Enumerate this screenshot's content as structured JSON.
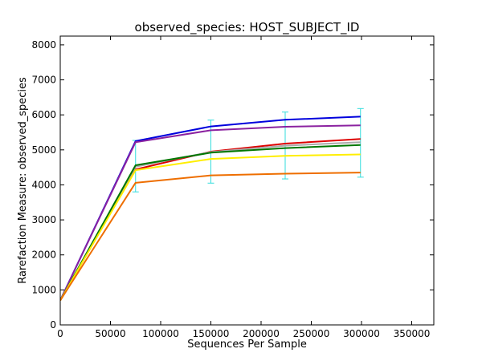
{
  "chart_data": {
    "type": "line",
    "title": "observed_species: HOST_SUBJECT_ID",
    "xlabel": "Sequences Per Sample",
    "ylabel": "Rarefaction Measure: observed_species",
    "xlim": [
      0,
      372000
    ],
    "ylim": [
      0,
      8250
    ],
    "xticks": [
      0,
      50000,
      100000,
      150000,
      200000,
      250000,
      300000,
      350000
    ],
    "yticks": [
      0,
      1000,
      2000,
      3000,
      4000,
      5000,
      6000,
      7000,
      8000
    ],
    "grid": false,
    "x": [
      0,
      75000,
      150000,
      224000,
      299000
    ],
    "series": [
      {
        "color": "#0000dd",
        "values": [
          700,
          5250,
          5670,
          5860,
          5950
        ]
      },
      {
        "color": "#8b22a0",
        "values": [
          700,
          5220,
          5560,
          5660,
          5700
        ]
      },
      {
        "color": "#dd0000",
        "values": [
          700,
          4440,
          4950,
          5180,
          5310
        ]
      },
      {
        "color": "#aaaaaa",
        "values": [
          700,
          4520,
          4940,
          5120,
          5220
        ]
      },
      {
        "color": "#007700",
        "values": [
          700,
          4560,
          4920,
          5050,
          5140
        ]
      },
      {
        "color": "#ffee00",
        "values": [
          700,
          4420,
          4740,
          4830,
          4870
        ]
      },
      {
        "color": "#ee6e00",
        "values": [
          700,
          4060,
          4270,
          4320,
          4350
        ]
      }
    ],
    "error_bars": {
      "color": "#33dddd",
      "x": [
        75000,
        150000,
        224000,
        299000
      ],
      "low": [
        3800,
        4050,
        4170,
        4220
      ],
      "high": [
        5270,
        5850,
        6080,
        6180
      ]
    }
  }
}
